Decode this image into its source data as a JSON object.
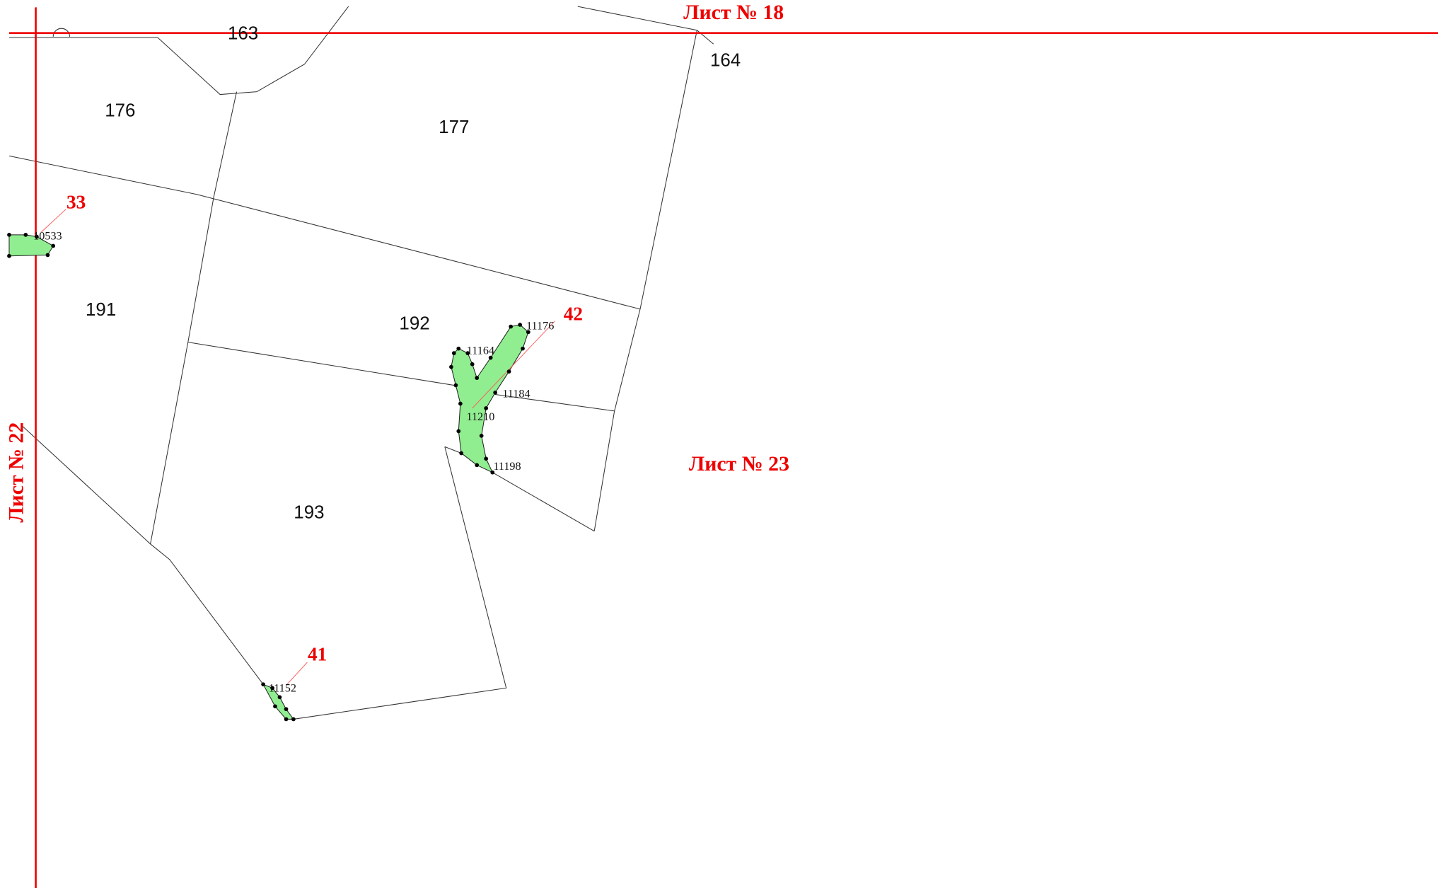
{
  "sheets": [
    "Лист № 18",
    "Лист № 22",
    "Лист № 23"
  ],
  "parcels": [
    "163",
    "164",
    "176",
    "177",
    "191",
    "192",
    "193"
  ],
  "zones": [
    {
      "number": "33",
      "points": [
        "10533"
      ]
    },
    {
      "number": "42",
      "points": [
        "11176",
        "11164",
        "11184",
        "11210",
        "11198"
      ]
    },
    {
      "number": "41",
      "points": [
        "11152"
      ]
    }
  ]
}
